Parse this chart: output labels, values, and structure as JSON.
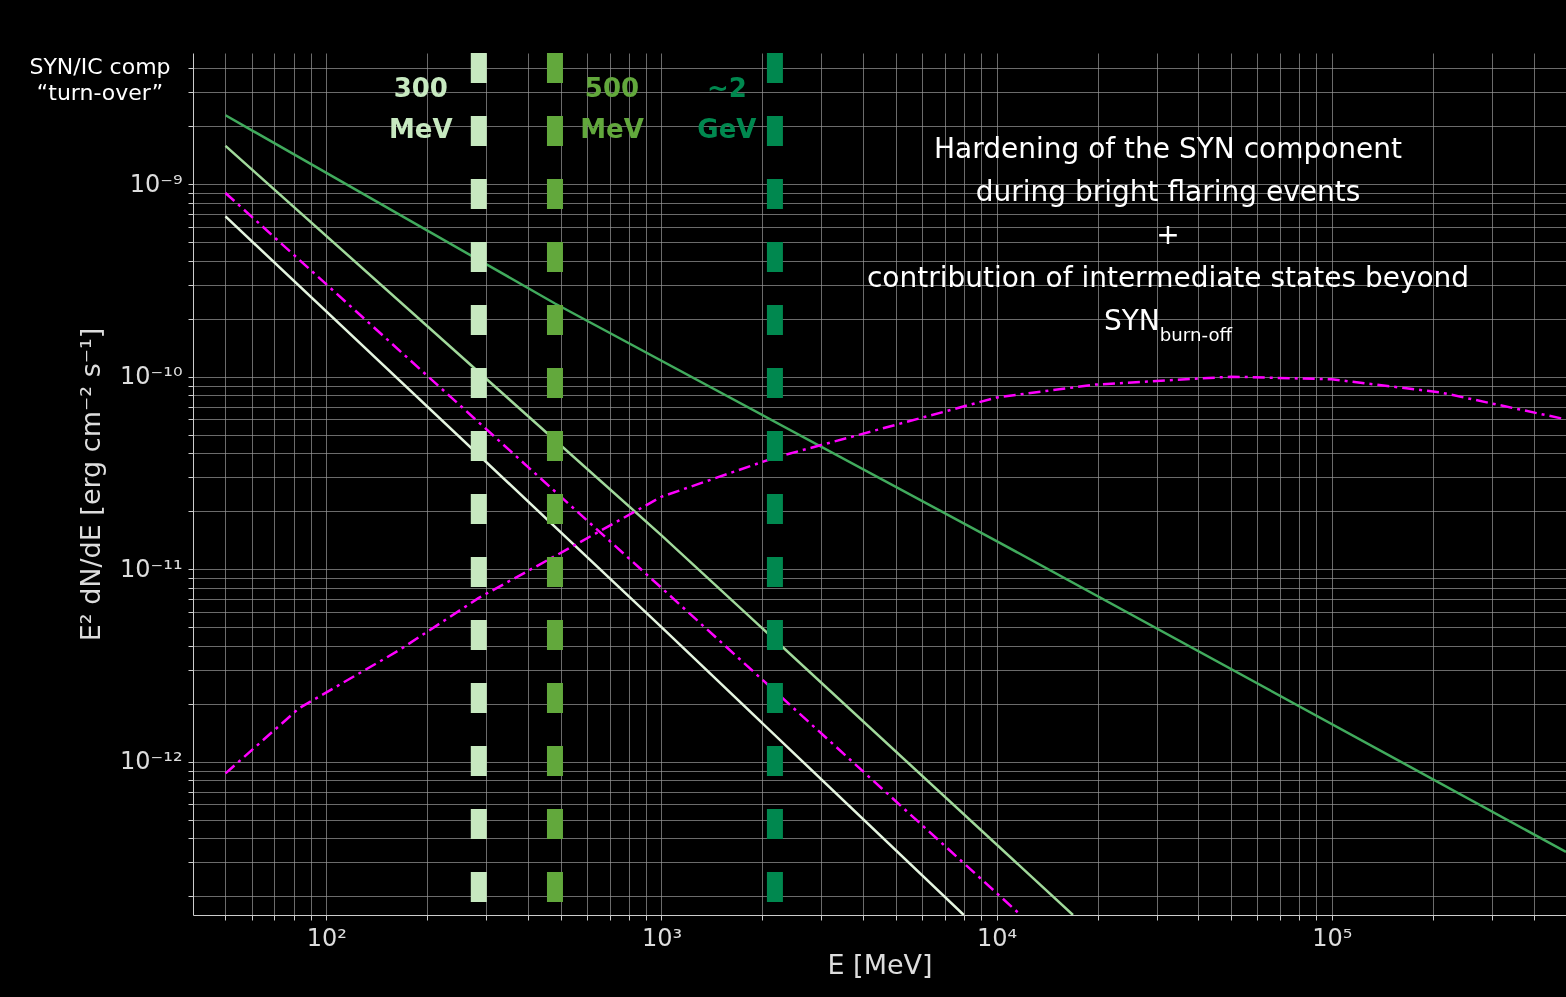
{
  "chart_data": {
    "type": "line",
    "xlabel": "E [MeV]",
    "ylabel": "E² dN/dE [erg cm⁻² s⁻¹]",
    "log": "xy",
    "grid": true,
    "xlim": [
      40,
      500000
    ],
    "ylim": [
      1.6e-13,
      4.8e-09
    ],
    "xticks": [
      {
        "value": 50,
        "label": null
      },
      {
        "value": 60,
        "label": null
      },
      {
        "value": 70,
        "label": null
      },
      {
        "value": 80,
        "label": null
      },
      {
        "value": 90,
        "label": null
      },
      {
        "value": 100,
        "label": "10²"
      },
      {
        "value": 200,
        "label": null
      },
      {
        "value": 300,
        "label": null
      },
      {
        "value": 400,
        "label": null
      },
      {
        "value": 500,
        "label": null
      },
      {
        "value": 600,
        "label": null
      },
      {
        "value": 700,
        "label": null
      },
      {
        "value": 800,
        "label": null
      },
      {
        "value": 900,
        "label": null
      },
      {
        "value": 1000,
        "label": "10³"
      },
      {
        "value": 2000,
        "label": null
      },
      {
        "value": 3000,
        "label": null
      },
      {
        "value": 4000,
        "label": null
      },
      {
        "value": 5000,
        "label": null
      },
      {
        "value": 6000,
        "label": null
      },
      {
        "value": 7000,
        "label": null
      },
      {
        "value": 8000,
        "label": null
      },
      {
        "value": 9000,
        "label": null
      },
      {
        "value": 10000,
        "label": "10⁴"
      },
      {
        "value": 20000,
        "label": null
      },
      {
        "value": 30000,
        "label": null
      },
      {
        "value": 40000,
        "label": null
      },
      {
        "value": 50000,
        "label": null
      },
      {
        "value": 60000,
        "label": null
      },
      {
        "value": 70000,
        "label": null
      },
      {
        "value": 80000,
        "label": null
      },
      {
        "value": 90000,
        "label": null
      },
      {
        "value": 100000,
        "label": "10⁵"
      },
      {
        "value": 200000,
        "label": null
      },
      {
        "value": 300000,
        "label": null
      },
      {
        "value": 400000,
        "label": null
      }
    ],
    "yticks": [
      {
        "value": 2e-13,
        "label": null
      },
      {
        "value": 3e-13,
        "label": null
      },
      {
        "value": 4e-13,
        "label": null
      },
      {
        "value": 5e-13,
        "label": null
      },
      {
        "value": 6e-13,
        "label": null
      },
      {
        "value": 7e-13,
        "label": null
      },
      {
        "value": 8e-13,
        "label": null
      },
      {
        "value": 9e-13,
        "label": null
      },
      {
        "value": 1e-12,
        "label": "10⁻¹²"
      },
      {
        "value": 2e-12,
        "label": null
      },
      {
        "value": 3e-12,
        "label": null
      },
      {
        "value": 4e-12,
        "label": null
      },
      {
        "value": 5e-12,
        "label": null
      },
      {
        "value": 6e-12,
        "label": null
      },
      {
        "value": 7e-12,
        "label": null
      },
      {
        "value": 8e-12,
        "label": null
      },
      {
        "value": 9e-12,
        "label": null
      },
      {
        "value": 1e-11,
        "label": "10⁻¹¹"
      },
      {
        "value": 2e-11,
        "label": null
      },
      {
        "value": 3e-11,
        "label": null
      },
      {
        "value": 4e-11,
        "label": null
      },
      {
        "value": 5e-11,
        "label": null
      },
      {
        "value": 6e-11,
        "label": null
      },
      {
        "value": 7e-11,
        "label": null
      },
      {
        "value": 8e-11,
        "label": null
      },
      {
        "value": 9e-11,
        "label": null
      },
      {
        "value": 1e-10,
        "label": "10⁻¹⁰"
      },
      {
        "value": 2e-10,
        "label": null
      },
      {
        "value": 3e-10,
        "label": null
      },
      {
        "value": 4e-10,
        "label": null
      },
      {
        "value": 5e-10,
        "label": null
      },
      {
        "value": 6e-10,
        "label": null
      },
      {
        "value": 7e-10,
        "label": null
      },
      {
        "value": 8e-10,
        "label": null
      },
      {
        "value": 9e-10,
        "label": null
      },
      {
        "value": 1e-09,
        "label": "10⁻⁹"
      },
      {
        "value": 2e-09,
        "label": null
      },
      {
        "value": 3e-09,
        "label": null
      },
      {
        "value": 4e-09,
        "label": null
      }
    ],
    "series": [
      {
        "color": "#41ab5d",
        "line_style": "solid",
        "x": [
          50,
          481,
          10000,
          500000
        ],
        "values": [
          2.28e-09,
          2.4e-10,
          1.4e-11,
          3.4e-13
        ]
      },
      {
        "color": "#a1d99b",
        "line_style": "solid",
        "x": [
          50,
          1000,
          16900
        ],
        "values": [
          1.58e-09,
          1.5e-11,
          1.6e-13
        ]
      },
      {
        "color": "#e5f5e0",
        "line_style": "solid",
        "x": [
          50,
          1000,
          7980
        ],
        "values": [
          6.8e-10,
          5e-12,
          1.6e-13
        ]
      },
      {
        "color": "#ff00ff",
        "line_style": "dashdot",
        "x": [
          50,
          1000,
          11800
        ],
        "values": [
          9e-10,
          8e-12,
          1.6e-13
        ]
      },
      {
        "color": "#ff00ff",
        "line_style": "dashdot",
        "x": [
          50,
          83,
          165,
          285,
          481,
          1000,
          2180,
          10000,
          19700,
          50000,
          100000,
          210000,
          500000
        ],
        "values": [
          8.7e-13,
          1.9e-12,
          3.8e-12,
          7.1e-12,
          1.17e-11,
          2.38e-11,
          3.8e-11,
          7.8e-11,
          9.1e-11,
          1e-10,
          9.7e-11,
          8.3e-11,
          6e-11
        ]
      }
    ],
    "ref_lines": [
      {
        "axis": "x",
        "value": 285,
        "label": "300 MeV",
        "color": "#c7e9c0",
        "line_style": "dashed"
      },
      {
        "axis": "x",
        "value": 481,
        "label": "500 MeV",
        "color": "#62a83c",
        "line_style": "dashed"
      },
      {
        "axis": "x",
        "value": 2180,
        "label": "~2 GeV",
        "color": "#00884f",
        "line_style": "dashed"
      }
    ],
    "annotations": [
      "SYN/IC comp\n“turn-over”",
      "Hardening of the SYN component\nduring bright flaring events\n+\ncontribution of intermediate states beyond\nSYN$_{burn-off}$"
    ]
  }
}
